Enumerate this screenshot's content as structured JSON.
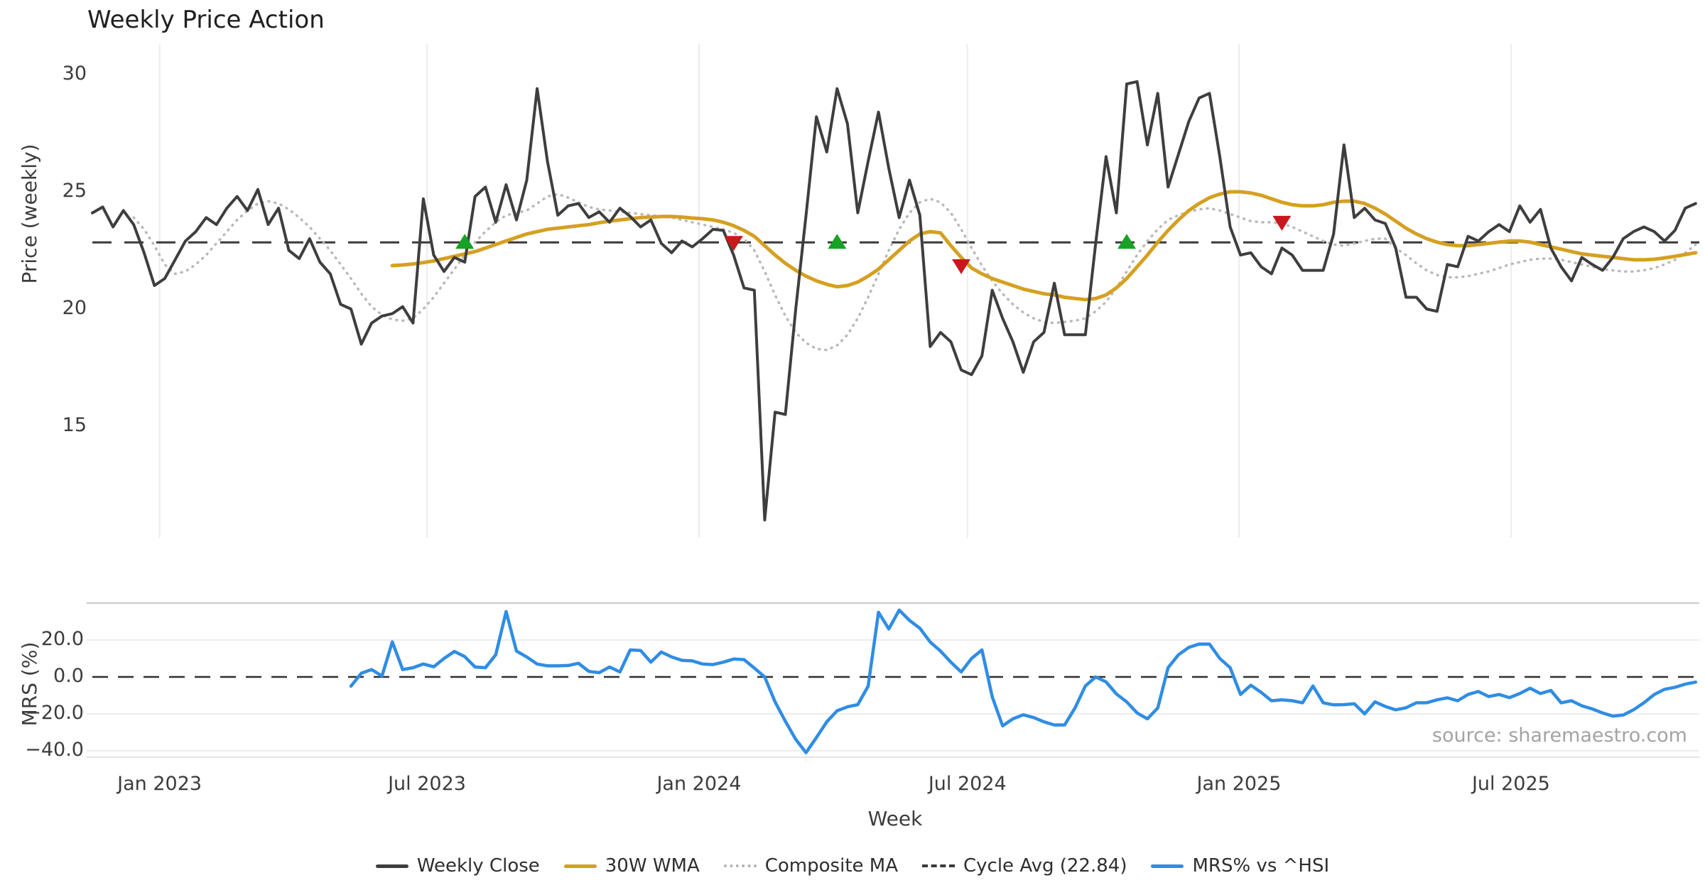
{
  "title": "Weekly Price Action",
  "source_credit": "source: sharemaestro.com",
  "axes": {
    "price_axis_label": "Price (weekly)",
    "mrs_axis_label": "MRS (%)",
    "x_axis_label": "Week",
    "price_ticks": [
      {
        "label": "30",
        "value": 30
      },
      {
        "label": "25",
        "value": 25
      },
      {
        "label": "20",
        "value": 20
      },
      {
        "label": "15",
        "value": 15
      }
    ],
    "mrs_ticks": [
      {
        "label": "20.0",
        "value": 20
      },
      {
        "label": "0.0",
        "value": 0
      },
      {
        "label": "−20.0",
        "value": -20
      },
      {
        "label": "−40.0",
        "value": -40
      }
    ],
    "x_ticks": [
      {
        "label": "Jan 2023",
        "week": 6.5
      },
      {
        "label": "Jul 2023",
        "week": 32.35
      },
      {
        "label": "Jan 2024",
        "week": 58.65
      },
      {
        "label": "Jul 2024",
        "week": 84.6
      },
      {
        "label": "Jan 2025",
        "week": 110.85
      },
      {
        "label": "Jul 2025",
        "week": 137.15
      }
    ]
  },
  "legend": [
    {
      "label": "Weekly Close",
      "style": "solid",
      "color": "#3e3e3e"
    },
    {
      "label": "30W WMA",
      "style": "solid",
      "color": "#d5a021"
    },
    {
      "label": "Composite MA",
      "style": "dotted",
      "color": "#b3b3b3"
    },
    {
      "label": "Cycle Avg (22.84)",
      "style": "dashed",
      "color": "#3a3a3a"
    },
    {
      "label": "MRS% vs ^HSI",
      "style": "solid",
      "color": "#2f8de4"
    }
  ],
  "colors": {
    "weekly_close": "#3e3e3e",
    "wma": "#d5a021",
    "composite": "#b9b9b9",
    "cycle_avg": "#3a3a3a",
    "mrs": "#2f8de4",
    "buy_marker": "#17a125",
    "sell_marker": "#c9181d",
    "gridline": "#ececec",
    "panel_border": "#c9c9c9",
    "title_text": "#1f1f1f",
    "source_text": "#a3a3a3"
  },
  "chart_data": {
    "type": "line",
    "title": "Weekly Price Action",
    "xlabel": "Week",
    "ylabel_top": "Price (weekly)",
    "ylabel_bottom": "MRS (%)",
    "start_date": "2022-11-14",
    "week_interval_days": 7,
    "total_weeks": 156,
    "cycle_avg": 22.84,
    "ylim_price": [
      10.2,
      31.3
    ],
    "ylim_mrs": [
      -43,
      40
    ],
    "grid": "vertical-on-price-panel, horizontal-on-mrs-panel",
    "legend_position": "bottom-center",
    "series": [
      {
        "name": "Weekly Close",
        "panel": "price",
        "start_week": 0,
        "values": [
          24.1,
          24.35,
          23.5,
          24.2,
          23.6,
          22.4,
          21.0,
          21.3,
          22.1,
          22.9,
          23.3,
          23.9,
          23.6,
          24.3,
          24.8,
          24.2,
          25.1,
          23.6,
          24.3,
          22.5,
          22.15,
          23.0,
          22.0,
          21.5,
          20.2,
          20.0,
          18.5,
          19.4,
          19.7,
          19.8,
          20.1,
          19.4,
          24.7,
          22.3,
          21.6,
          22.2,
          22.0,
          24.8,
          25.2,
          23.7,
          25.3,
          23.8,
          25.5,
          29.4,
          26.3,
          24.0,
          24.4,
          24.5,
          23.9,
          24.15,
          23.7,
          24.3,
          23.95,
          23.5,
          23.8,
          22.8,
          22.4,
          22.9,
          22.65,
          23.0,
          23.4,
          23.35,
          22.3,
          20.9,
          20.8,
          11.0,
          15.6,
          15.5,
          20.0,
          24.0,
          28.2,
          26.7,
          29.4,
          27.9,
          24.1,
          26.3,
          28.4,
          26.0,
          23.9,
          25.5,
          24.0,
          18.4,
          19.0,
          18.6,
          17.4,
          17.2,
          18.0,
          20.8,
          19.6,
          18.6,
          17.3,
          18.6,
          19.0,
          21.1,
          18.9,
          18.9,
          18.9,
          22.8,
          26.5,
          24.1,
          29.6,
          29.7,
          27.0,
          29.2,
          25.2,
          26.6,
          28.0,
          29.0,
          29.2,
          26.5,
          23.5,
          22.3,
          22.4,
          21.8,
          21.5,
          22.6,
          22.3,
          21.65,
          21.65,
          21.65,
          23.2,
          27.0,
          23.9,
          24.3,
          23.8,
          23.65,
          22.6,
          20.5,
          20.5,
          20.0,
          19.9,
          21.9,
          21.8,
          23.1,
          22.9,
          23.3,
          23.6,
          23.3,
          24.4,
          23.7,
          24.25,
          22.6,
          21.8,
          21.2,
          22.2,
          21.9,
          21.65,
          22.2,
          23.0,
          23.3,
          23.5,
          23.3,
          22.9,
          23.35,
          24.3,
          24.5
        ]
      },
      {
        "name": "30W WMA",
        "panel": "price",
        "start_week": 29,
        "values": [
          21.85,
          21.88,
          21.92,
          21.98,
          22.05,
          22.15,
          22.25,
          22.35,
          22.45,
          22.6,
          22.75,
          22.9,
          23.05,
          23.2,
          23.3,
          23.4,
          23.45,
          23.5,
          23.55,
          23.6,
          23.68,
          23.75,
          23.8,
          23.85,
          23.9,
          23.92,
          23.95,
          23.95,
          23.92,
          23.88,
          23.85,
          23.8,
          23.7,
          23.55,
          23.35,
          23.1,
          22.7,
          22.3,
          21.95,
          21.65,
          21.4,
          21.2,
          21.05,
          20.95,
          21.0,
          21.15,
          21.4,
          21.7,
          22.1,
          22.5,
          22.9,
          23.2,
          23.3,
          23.25,
          22.7,
          22.2,
          21.75,
          21.5,
          21.3,
          21.15,
          21.0,
          20.85,
          20.75,
          20.65,
          20.6,
          20.5,
          20.45,
          20.4,
          20.45,
          20.6,
          20.9,
          21.3,
          21.8,
          22.3,
          22.85,
          23.35,
          23.8,
          24.2,
          24.5,
          24.75,
          24.9,
          25.0,
          25.0,
          24.95,
          24.85,
          24.7,
          24.55,
          24.45,
          24.4,
          24.4,
          24.45,
          24.55,
          24.6,
          24.6,
          24.5,
          24.3,
          24.05,
          23.75,
          23.45,
          23.2,
          23.0,
          22.85,
          22.75,
          22.7,
          22.7,
          22.75,
          22.8,
          22.85,
          22.9,
          22.9,
          22.85,
          22.75,
          22.65,
          22.55,
          22.45,
          22.35,
          22.3,
          22.25,
          22.2,
          22.15,
          22.1,
          22.1,
          22.12,
          22.18,
          22.25,
          22.32,
          22.4
        ]
      },
      {
        "name": "Composite MA",
        "panel": "price",
        "start_week": 4,
        "values": [
          23.9,
          23.4,
          22.7,
          21.9,
          21.5,
          21.6,
          21.9,
          22.3,
          22.8,
          23.3,
          23.8,
          24.2,
          24.5,
          24.6,
          24.5,
          24.25,
          23.9,
          23.5,
          23.0,
          22.5,
          21.9,
          21.3,
          20.65,
          20.1,
          19.75,
          19.55,
          19.5,
          19.6,
          20.0,
          20.5,
          21.1,
          21.7,
          22.3,
          22.85,
          23.3,
          23.7,
          24.0,
          24.1,
          24.2,
          24.5,
          24.8,
          24.9,
          24.75,
          24.55,
          24.35,
          24.25,
          24.2,
          24.15,
          24.1,
          24.05,
          24.0,
          23.95,
          23.9,
          23.8,
          23.7,
          23.6,
          23.5,
          23.4,
          23.25,
          23.0,
          22.5,
          21.6,
          20.6,
          19.7,
          19.0,
          18.55,
          18.3,
          18.25,
          18.45,
          18.9,
          19.6,
          20.5,
          21.5,
          22.5,
          23.4,
          24.1,
          24.55,
          24.7,
          24.55,
          24.1,
          23.4,
          22.6,
          21.85,
          21.2,
          20.65,
          20.2,
          19.85,
          19.6,
          19.45,
          19.4,
          19.45,
          19.5,
          19.6,
          19.9,
          20.3,
          20.9,
          21.6,
          22.3,
          22.9,
          23.4,
          23.8,
          24.0,
          24.15,
          24.25,
          24.3,
          24.2,
          24.05,
          23.9,
          23.75,
          23.7,
          23.7,
          23.65,
          23.5,
          23.3,
          23.1,
          22.9,
          22.75,
          22.7,
          22.8,
          22.9,
          23.0,
          23.0,
          22.6,
          22.3,
          21.95,
          21.65,
          21.45,
          21.35,
          21.35,
          21.4,
          21.5,
          21.6,
          21.75,
          21.9,
          22.0,
          22.1,
          22.15,
          22.15,
          22.1,
          22.0,
          21.9,
          21.8,
          21.7,
          21.65,
          21.6,
          21.6,
          21.65,
          21.75,
          21.9,
          22.1,
          22.4,
          22.75
        ]
      },
      {
        "name": "MRS% vs ^HSI",
        "panel": "mrs",
        "start_week": 25,
        "values": [
          -5,
          2,
          4,
          0.5,
          19,
          4,
          5,
          7,
          5.5,
          10,
          13.8,
          11,
          5.4,
          5,
          12,
          35.4,
          14,
          10.8,
          7,
          6,
          6,
          6.2,
          7.4,
          3,
          2.3,
          5.4,
          2.7,
          14.6,
          14.3,
          8,
          13.5,
          10.8,
          9,
          8.7,
          7,
          6.7,
          8,
          9.7,
          9.4,
          4.8,
          0,
          -13.5,
          -24,
          -33.8,
          -41,
          -32.8,
          -24.3,
          -18.3,
          -16.2,
          -15,
          -5,
          35,
          26,
          36.2,
          30.6,
          26.4,
          18.9,
          14,
          8,
          2.7,
          10,
          14.6,
          -10.8,
          -26.5,
          -22.7,
          -20.5,
          -22,
          -24.3,
          -26,
          -26,
          -16.8,
          -4.9,
          0,
          -2.7,
          -9.2,
          -13.5,
          -19.5,
          -22.7,
          -16.8,
          5,
          12,
          16,
          17.8,
          17.8,
          10,
          5,
          -9.5,
          -4.5,
          -8.4,
          -12.9,
          -12.4,
          -12.9,
          -14,
          -4.9,
          -14,
          -15.1,
          -15,
          -14.5,
          -20,
          -13.5,
          -16,
          -17.8,
          -16.7,
          -14,
          -14,
          -12.4,
          -11.3,
          -12.9,
          -9.5,
          -7.9,
          -10.6,
          -9.5,
          -11.2,
          -9,
          -6.1,
          -9,
          -7.3,
          -14,
          -12.9,
          -15.6,
          -17.3,
          -19.5,
          -21.2,
          -20.6,
          -17.8,
          -14,
          -9.5,
          -6.7,
          -5.6,
          -3.9,
          -2.8
        ]
      }
    ],
    "markers": {
      "buy": [
        {
          "week": 36,
          "date": "2023-07-24",
          "price": 22.84
        },
        {
          "week": 72,
          "date": "2024-04-01",
          "price": 22.84
        },
        {
          "week": 100,
          "date": "2024-10-14",
          "price": 22.84
        }
      ],
      "sell": [
        {
          "week": 62,
          "date": "2024-01-22",
          "price": 22.84
        },
        {
          "week": 84,
          "date": "2024-06-24",
          "price": 21.85
        },
        {
          "week": 115,
          "date": "2025-01-27",
          "price": 23.7
        }
      ]
    }
  }
}
